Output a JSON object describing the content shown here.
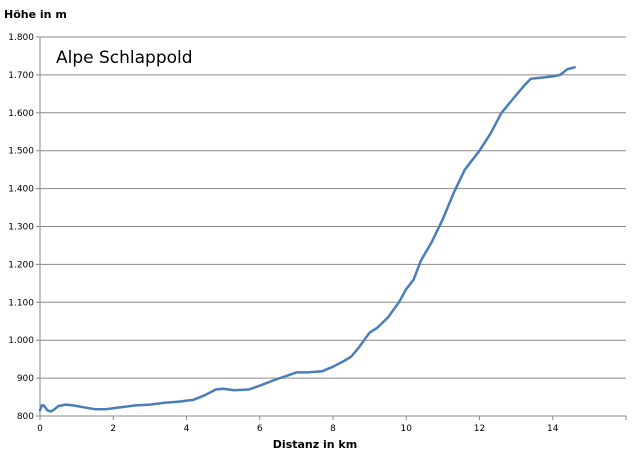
{
  "chart_data": {
    "type": "line",
    "title": "Alpe Schlappold",
    "ylabel": "Höhe in m",
    "xlabel": "Distanz in km",
    "xlim": [
      0,
      16
    ],
    "ylim": [
      800,
      1800
    ],
    "x_ticks": [
      0,
      2,
      4,
      6,
      8,
      10,
      12,
      14
    ],
    "x_tick_labels": [
      "0",
      "2",
      "4",
      "6",
      "8",
      "10",
      "12",
      "14"
    ],
    "y_ticks": [
      800,
      900,
      1000,
      1100,
      1200,
      1300,
      1400,
      1500,
      1600,
      1700,
      1800
    ],
    "y_tick_labels": [
      "800",
      "900",
      "1.000",
      "1.100",
      "1.200",
      "1.300",
      "1.400",
      "1.500",
      "1.600",
      "1.700",
      "1.800"
    ],
    "grid": "horizontal",
    "line_color": "#4a7ebb",
    "series": [
      {
        "x": [
          0,
          0.05,
          0.1,
          0.15,
          0.2,
          0.3,
          0.4,
          0.5,
          0.7,
          0.9,
          1.2,
          1.5,
          1.8,
          2.2,
          2.6,
          3.0,
          3.4,
          3.8,
          4.2,
          4.5,
          4.8,
          5.0,
          5.3,
          5.7,
          6.0,
          6.4,
          6.8,
          7.0,
          7.3,
          7.7,
          8.0,
          8.3,
          8.5,
          8.7,
          9.0,
          9.2,
          9.5,
          9.8,
          10.0,
          10.2,
          10.4,
          10.7,
          11.0,
          11.3,
          11.6,
          12.0,
          12.3,
          12.6,
          12.9,
          13.2,
          13.4,
          13.7,
          14.0,
          14.2,
          14.4,
          14.6
        ],
        "y": [
          815,
          828,
          828,
          822,
          815,
          812,
          818,
          826,
          830,
          828,
          823,
          818,
          818,
          823,
          828,
          830,
          835,
          838,
          843,
          855,
          870,
          872,
          868,
          870,
          880,
          895,
          908,
          915,
          915,
          918,
          930,
          945,
          957,
          980,
          1020,
          1032,
          1060,
          1100,
          1135,
          1160,
          1210,
          1260,
          1320,
          1390,
          1450,
          1500,
          1545,
          1600,
          1635,
          1670,
          1690,
          1693,
          1696,
          1700,
          1715,
          1720
        ]
      }
    ]
  }
}
